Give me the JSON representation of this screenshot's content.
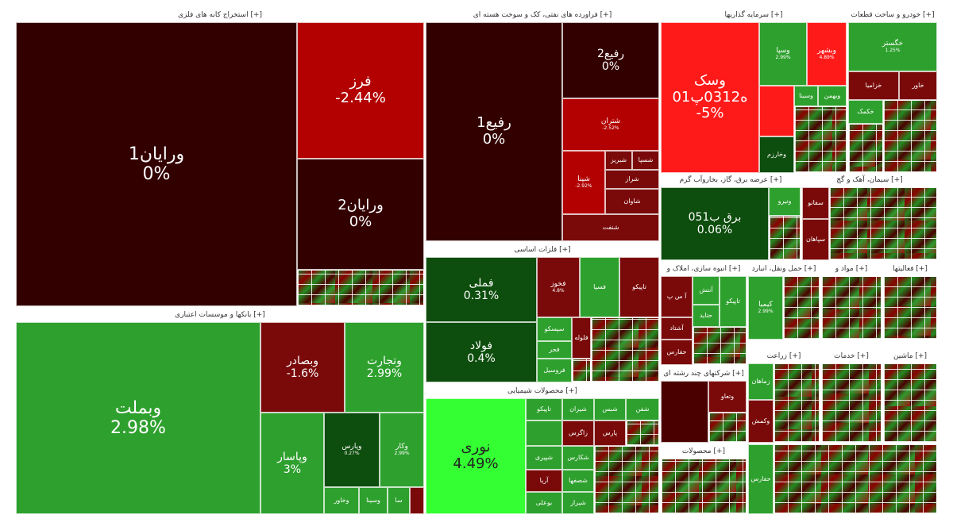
{
  "colors": {
    "deep_red": "#330000",
    "red": "#b30000",
    "dark_red": "#7a0a0a",
    "bright_red": "#ff1a1a",
    "dark_green": "#0d4d0d",
    "green": "#2ea02e",
    "bright_green": "#33ff33",
    "gray": "#808080"
  },
  "sectors": {
    "extraction": "استخراج کانه های فلزی [+]",
    "refinery": "فراورده های نفتی، کک و سوخت هسته ای [+]",
    "investment": "سرمایه گذاریها [+]",
    "auto": "خودرو و ساخت قطعات [+]",
    "banks": "بانکها و موسسات اعتباری [+]",
    "basic_metals": "فلزات اساسی [+]",
    "utilities": "عرضه برق، گاز، بخاروآب گرم [+]",
    "cement": "سیمان، آهک و گچ [+]",
    "chemicals": "محصولات شیمیایی [+]",
    "multi": "شرکتهای چند رشته ای [+]",
    "transport": "حمل ونقل، انبارد [+]",
    "realestate": "انبوه سازی، املاک و [+]",
    "food": "مواد و [+]",
    "agri": "زراعت [+]",
    "it": "فعالیتها [+]",
    "services": "خدمات [+]",
    "rubber": "محصولات [+]",
    "machinery": "ماشین [+]"
  },
  "tiles": {
    "vrayan1": {
      "name": "ورایان1",
      "pct": "0%"
    },
    "fars": {
      "name": "فرز",
      "pct": "-2.44%"
    },
    "vrayan2": {
      "name": "ورایان2",
      "pct": "0%"
    },
    "vbmellat": {
      "name": "وبملت",
      "pct": "2.98%"
    },
    "vbsader": {
      "name": "وبصادر",
      "pct": "-1.6%"
    },
    "vtejarat": {
      "name": "وتجارت",
      "pct": "2.99%"
    },
    "vpasar": {
      "name": "وپاسار",
      "pct": "3%"
    },
    "vbank_small": {
      "name": "وپارس",
      "pct": "0.27%"
    },
    "vbank_small2": {
      "name": "وکار",
      "pct": "2.99%"
    },
    "vkhavar": {
      "name": "وخاور",
      "pct": ""
    },
    "vsina": {
      "name": "وسینا",
      "pct": ""
    },
    "vsa": {
      "name": "سا",
      "pct": ""
    },
    "refinery1": {
      "name": "رفیع1",
      "pct": "0%"
    },
    "refinery2": {
      "name": "رفیع2",
      "pct": "0%"
    },
    "shetran": {
      "name": "شتران",
      "pct": "-2.52%"
    },
    "shpna": {
      "name": "شپنا",
      "pct": "-2.92%"
    },
    "shbariz": {
      "name": "شبریز",
      "pct": ""
    },
    "shsina": {
      "name": "شسپا",
      "pct": ""
    },
    "shiraz": {
      "name": "شراز",
      "pct": ""
    },
    "shavan": {
      "name": "شاوان",
      "pct": ""
    },
    "shfnaft": {
      "name": "شنفت",
      "pct": ""
    },
    "fameli": {
      "name": "فملی",
      "pct": "0.31%"
    },
    "foolad": {
      "name": "فولاد",
      "pct": "0.4%"
    },
    "hamrah": {
      "name": "تاپیکو",
      "pct": ""
    },
    "fakhooz": {
      "name": "فخوز",
      "pct": "4.8%"
    },
    "fesar": {
      "name": "فسپا",
      "pct": ""
    },
    "fesko": {
      "name": "سپسکو",
      "pct": ""
    },
    "fajr": {
      "name": "فجر",
      "pct": ""
    },
    "faloo": {
      "name": "فلوله",
      "pct": ""
    },
    "froil": {
      "name": "فروسیل",
      "pct": ""
    },
    "nori": {
      "name": "نوری",
      "pct": "4.49%"
    },
    "tapiko": {
      "name": "تاپیکو",
      "pct": ""
    },
    "shiran": {
      "name": "شیران",
      "pct": ""
    },
    "shabs": {
      "name": "شبس",
      "pct": ""
    },
    "zagros": {
      "name": "زاگرس",
      "pct": ""
    },
    "shfan": {
      "name": "شفن",
      "pct": ""
    },
    "pars": {
      "name": "پارس",
      "pct": ""
    },
    "shekaras": {
      "name": "شکارس",
      "pct": ""
    },
    "shpiri": {
      "name": "شپیری",
      "pct": ""
    },
    "shsepehr": {
      "name": "شصفها",
      "pct": ""
    },
    "arya": {
      "name": "آریا",
      "pct": ""
    },
    "shiraz2": {
      "name": "شیراز",
      "pct": ""
    },
    "bouali": {
      "name": "بوعلی",
      "pct": ""
    },
    "invest_big": {
      "name": "وسک ه0312پ01",
      "pct": "-5%"
    },
    "vsapa": {
      "name": "وسپا",
      "pct": "2.99%"
    },
    "invest_red2": {
      "name": "وبشهر",
      "pct": "4.89%"
    },
    "vsina2": {
      "name": "وسینا",
      "pct": ""
    },
    "vbahman": {
      "name": "وبهمن",
      "pct": ""
    },
    "vkharazm": {
      "name": "وخارزم",
      "pct": ""
    },
    "khegostar": {
      "name": "خگستر",
      "pct": "1.25%"
    },
    "khezamia": {
      "name": "خزامیا",
      "pct": ""
    },
    "khavar": {
      "name": "خاور",
      "pct": ""
    },
    "khekamak": {
      "name": "خکمک",
      "pct": ""
    },
    "util_big": {
      "name": "برق ب051",
      "pct": "0.06%"
    },
    "vnir": {
      "name": "ونیرو",
      "pct": ""
    },
    "saffa": {
      "name": "سفانو",
      "pct": ""
    },
    "sebahan": {
      "name": "سپاهان",
      "pct": ""
    },
    "asp": {
      "name": "آ س پ",
      "pct": ""
    },
    "ashiz": {
      "name": "آنتش",
      "pct": ""
    },
    "hafaz": {
      "name": "حفارس",
      "pct": ""
    },
    "hshtazh": {
      "name": "حتاید",
      "pct": ""
    },
    "hasht": {
      "name": "آشتاد",
      "pct": ""
    },
    "tapiko2": {
      "name": "تاپیکو",
      "pct": ""
    },
    "kimia": {
      "name": "کیمیا",
      "pct": "2.99%"
    },
    "zamaheda": {
      "name": "زماهان",
      "pct": ""
    },
    "vtecab": {
      "name": "وتعاو",
      "pct": ""
    },
    "vmesh": {
      "name": "وکمش",
      "pct": ""
    },
    "hfafr": {
      "name": "حفارس",
      "pct": ""
    }
  }
}
